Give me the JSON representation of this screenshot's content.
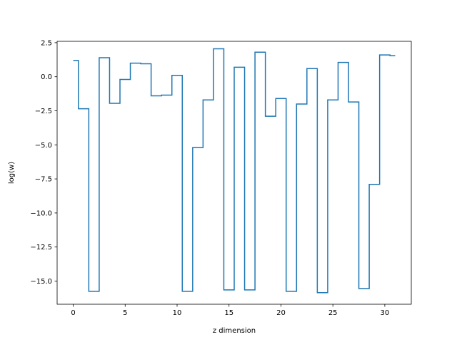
{
  "chart_data": {
    "type": "line",
    "drawstyle": "steps-mid",
    "title": "",
    "xlabel": "z dimension",
    "ylabel": "log(w)",
    "xlim": [
      -1.55,
      32.55
    ],
    "ylim": [
      -16.7,
      2.6
    ],
    "grid": false,
    "legend": "none",
    "line_color": "#1f77b4",
    "x_ticks": [
      0,
      5,
      10,
      15,
      20,
      25,
      30
    ],
    "x_tick_labels": [
      "0",
      "5",
      "10",
      "15",
      "20",
      "25",
      "30"
    ],
    "y_ticks": [
      2.5,
      0,
      -2.5,
      -5,
      -7.5,
      -10,
      -12.5,
      -15
    ],
    "y_tick_labels": [
      "2.5",
      "0.0",
      "−2.5",
      "−5.0",
      "−7.5",
      "−10.0",
      "−12.5",
      "−15.0"
    ],
    "x": [
      0,
      1,
      2,
      3,
      4,
      5,
      6,
      7,
      8,
      9,
      10,
      11,
      12,
      13,
      14,
      15,
      16,
      17,
      18,
      19,
      20,
      21,
      22,
      23,
      24,
      25,
      26,
      27,
      28,
      29,
      30,
      31
    ],
    "series": [
      {
        "values": [
          1.2,
          -2.35,
          -15.75,
          1.4,
          -1.95,
          -0.2,
          1.0,
          0.95,
          -1.4,
          -1.35,
          0.1,
          -15.75,
          -5.2,
          -1.7,
          2.05,
          -15.65,
          0.7,
          -15.65,
          1.8,
          -2.9,
          -1.6,
          -15.75,
          -2.0,
          0.6,
          -15.85,
          -1.7,
          1.05,
          -1.85,
          -15.55,
          -7.9,
          1.6,
          1.55
        ]
      }
    ]
  }
}
